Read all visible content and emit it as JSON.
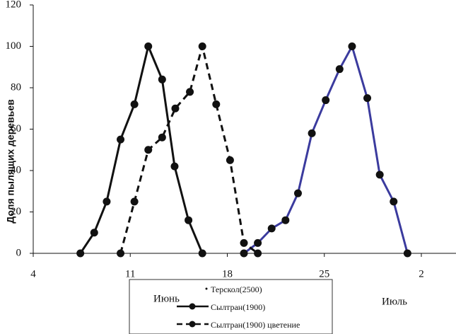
{
  "chart_data": {
    "type": "line",
    "y_label": "Доля пылящих деревьев",
    "annotations": [
      "Июнь",
      "Июль"
    ],
    "xlim": [
      4,
      34.5
    ],
    "xticks": [
      4,
      11,
      18,
      25,
      {
        "value": 32,
        "label": "2"
      }
    ],
    "ylim": [
      0,
      120
    ],
    "yticks": [
      0,
      20,
      40,
      60,
      80,
      100,
      120
    ],
    "grid": false,
    "legend": "bottom",
    "series": [
      {
        "name": "Терскол(2500)",
        "color": "#3b3b9e",
        "style": "solid",
        "x": [
          19.2,
          20.2,
          21.2,
          22.2,
          23.1,
          24.1,
          25.1,
          26.1,
          27.0,
          28.1,
          29.0,
          30.0,
          31.0
        ],
        "values": [
          0,
          5,
          12,
          16,
          29,
          58,
          74,
          89,
          100,
          75,
          38,
          25,
          0
        ]
      },
      {
        "name": "Сылтран(1900)",
        "color": "#111111",
        "style": "solid",
        "x": [
          7.4,
          8.4,
          9.3,
          10.3,
          11.3,
          12.3,
          13.3,
          14.2,
          15.2,
          16.2
        ],
        "values": [
          0,
          10,
          25,
          55,
          72,
          100,
          84,
          42,
          16,
          0
        ]
      },
      {
        "name": "Сылтран(1900) цветение",
        "color": "#111111",
        "style": "dashed",
        "x": [
          10.3,
          11.3,
          12.3,
          13.3,
          14.25,
          15.3,
          16.2,
          17.2,
          18.2,
          19.2,
          20.2
        ],
        "values": [
          0,
          25,
          50,
          56,
          70,
          78,
          100,
          72,
          45,
          5,
          0
        ]
      }
    ]
  }
}
